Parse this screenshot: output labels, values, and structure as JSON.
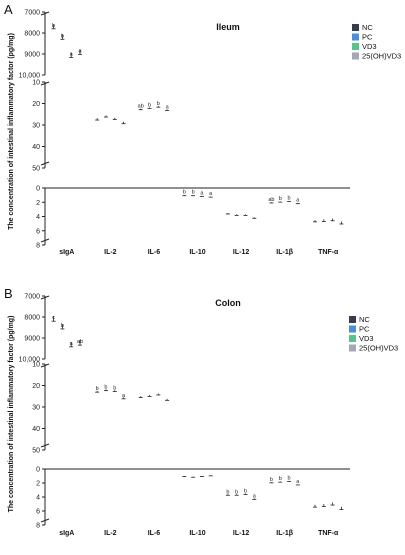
{
  "colors": {
    "NC": "#363d4d",
    "PC": "#4a90d9",
    "VD3": "#5cc28c",
    "25(OH)VD3": "#a3a8b3",
    "axis": "#222222"
  },
  "chart_data": [
    {
      "type": "bar",
      "panel_label": "A",
      "title": "Ileum",
      "ylabel": "The concentration of intestinal inflammatory factor (pg/mg)",
      "broken_axis": true,
      "segments": [
        {
          "range": [
            0,
            8
          ],
          "ticks": [
            "0",
            "2",
            "4",
            "6",
            "8"
          ],
          "tick_values": [
            0,
            2,
            4,
            6,
            8
          ]
        },
        {
          "range": [
            10,
            50
          ],
          "ticks": [
            "10",
            "20",
            "30",
            "40",
            "50"
          ],
          "tick_values": [
            10,
            20,
            30,
            40,
            50
          ]
        },
        {
          "range": [
            7000,
            10000
          ],
          "ticks": [
            "7000",
            "8000",
            "9000",
            "10,000"
          ],
          "tick_values": [
            7000,
            8000,
            9000,
            10000
          ]
        }
      ],
      "categories": [
        "sIgA",
        "IL-2",
        "IL-6",
        "IL-10",
        "IL-12",
        "IL-1β",
        "TNF-α"
      ],
      "series": [
        {
          "name": "NC",
          "values": [
            7600,
            26.8,
            22.4,
            1.0,
            3.5,
            2.0,
            4.5
          ],
          "errors": [
            200,
            0.9,
            0.5,
            0.08,
            0.15,
            0.1,
            0.25
          ],
          "letters": [
            "b",
            "",
            "ab",
            "b",
            "",
            "ab",
            ""
          ]
        },
        {
          "name": "PC",
          "values": [
            8050,
            25.5,
            21.8,
            1.0,
            3.7,
            1.9,
            4.4
          ],
          "errors": [
            250,
            0.8,
            0.5,
            0.08,
            0.15,
            0.08,
            0.3
          ],
          "letters": [
            "b",
            "",
            "b",
            "b",
            "",
            "b",
            ""
          ]
        },
        {
          "name": "VD3",
          "values": [
            8950,
            26.6,
            21.2,
            1.1,
            3.7,
            1.8,
            4.3
          ],
          "errors": [
            220,
            0.8,
            0.5,
            0.08,
            0.15,
            0.08,
            0.3
          ],
          "letters": [
            "a",
            "",
            "b",
            "a",
            "",
            "b",
            ""
          ]
        },
        {
          "name": "25(OH)VD3",
          "values": [
            8800,
            28.5,
            22.8,
            1.2,
            4.1,
            2.1,
            4.7
          ],
          "errors": [
            220,
            0.9,
            0.5,
            0.08,
            0.15,
            0.1,
            0.35
          ],
          "letters": [
            "a",
            "",
            "a",
            "a",
            "",
            "a",
            ""
          ]
        }
      ],
      "legend": [
        "NC",
        "PC",
        "VD3",
        "25(OH)VD3"
      ],
      "legend_position": "top-right"
    },
    {
      "type": "bar",
      "panel_label": "B",
      "title": "Colon",
      "ylabel": "The concentration of intestinal inflammatory factor (pg/mg)",
      "broken_axis": true,
      "segments": [
        {
          "range": [
            0,
            8
          ],
          "ticks": [
            "0",
            "2",
            "4",
            "6",
            "8"
          ],
          "tick_values": [
            0,
            2,
            4,
            6,
            8
          ]
        },
        {
          "range": [
            10,
            50
          ],
          "ticks": [
            "10",
            "20",
            "30",
            "40",
            "50"
          ],
          "tick_values": [
            10,
            20,
            30,
            40,
            50
          ]
        },
        {
          "range": [
            7000,
            10000
          ],
          "ticks": [
            "7000",
            "8000",
            "9000",
            "10,000"
          ],
          "tick_values": [
            7000,
            8000,
            9000,
            10000
          ]
        }
      ],
      "categories": [
        "sIgA",
        "IL-2",
        "IL-6",
        "IL-10",
        "IL-12",
        "IL-1β",
        "TNF-α"
      ],
      "series": [
        {
          "name": "NC",
          "values": [
            7950,
            22.5,
            25.0,
            1.0,
            3.6,
            1.9,
            5.1
          ],
          "errors": [
            250,
            0.6,
            0.6,
            0.08,
            0.15,
            0.08,
            0.35
          ],
          "letters": [
            "c",
            "b",
            "",
            "",
            "b",
            "b",
            ""
          ]
        },
        {
          "name": "PC",
          "values": [
            8350,
            21.8,
            24.5,
            1.1,
            3.6,
            1.8,
            5.0
          ],
          "errors": [
            220,
            0.6,
            0.6,
            0.08,
            0.15,
            0.08,
            0.35
          ],
          "letters": [
            "b",
            "b",
            "",
            "",
            "b",
            "b",
            ""
          ]
        },
        {
          "name": "VD3",
          "values": [
            9200,
            22.2,
            23.8,
            1.0,
            3.5,
            1.7,
            4.8
          ],
          "errors": [
            220,
            0.6,
            0.6,
            0.08,
            0.15,
            0.08,
            0.35
          ],
          "letters": [
            "a",
            "b",
            "",
            "",
            "b",
            "b",
            ""
          ]
        },
        {
          "name": "25(OH)VD3",
          "values": [
            9100,
            25.5,
            26.2,
            0.9,
            4.2,
            2.2,
            5.4
          ],
          "errors": [
            240,
            0.7,
            0.7,
            0.08,
            0.15,
            0.08,
            0.4
          ],
          "letters": [
            "ab",
            "a",
            "",
            "",
            "a",
            "a",
            ""
          ]
        }
      ],
      "legend": [
        "NC",
        "PC",
        "VD3",
        "25(OH)VD3"
      ],
      "legend_position": "top-right"
    }
  ]
}
